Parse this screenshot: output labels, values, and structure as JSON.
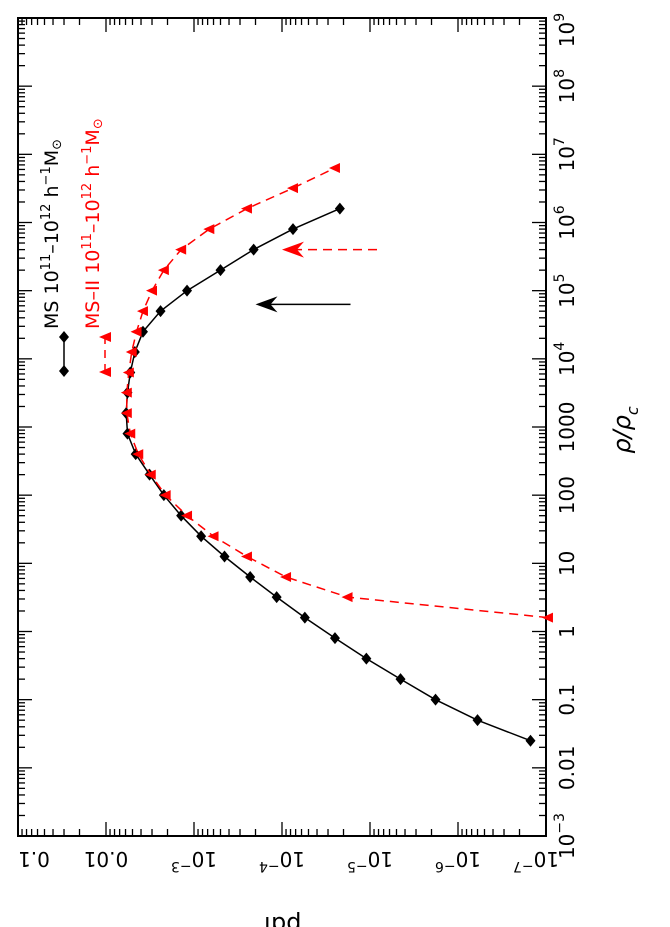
{
  "chart_data": {
    "type": "line",
    "orientation": "rotated 90 degrees clockwise (density axis runs bottom-to-top along the right edge, pdf axis runs right-to-left and is printed upside-down along the top)",
    "xlabel": "ρ/ρ",
    "xlabel_sub": "c",
    "ylabel": "pdf",
    "xscale": "log",
    "yscale": "log",
    "xlim": [
      0.001,
      1000000000
    ],
    "ylim": [
      1e-07,
      0.1
    ],
    "x_tick_labels": [
      {
        "value": 0.001,
        "base": "10",
        "exp": "−3"
      },
      {
        "value": 0.01,
        "text": "0.01"
      },
      {
        "value": 0.1,
        "text": "0.1"
      },
      {
        "value": 1,
        "text": "1"
      },
      {
        "value": 10,
        "text": "10"
      },
      {
        "value": 100,
        "text": "100"
      },
      {
        "value": 1000,
        "text": "1000"
      },
      {
        "value": 10000,
        "base": "10",
        "exp": "4"
      },
      {
        "value": 100000,
        "base": "10",
        "exp": "5"
      },
      {
        "value": 1000000,
        "base": "10",
        "exp": "6"
      },
      {
        "value": 10000000,
        "base": "10",
        "exp": "7"
      },
      {
        "value": 100000000,
        "base": "10",
        "exp": "8"
      },
      {
        "value": 1000000000,
        "base": "10",
        "exp": "9"
      }
    ],
    "y_tick_labels": [
      {
        "value": 1e-07,
        "base": "10",
        "exp": "−7"
      },
      {
        "value": 1e-06,
        "base": "10",
        "exp": "−6"
      },
      {
        "value": 1e-05,
        "base": "10",
        "exp": "−5"
      },
      {
        "value": 0.0001,
        "base": "10",
        "exp": "−4"
      },
      {
        "value": 0.001,
        "base": "10",
        "exp": "−3"
      },
      {
        "value": 0.01,
        "text": "0.01"
      },
      {
        "value": 0.1,
        "text": "0.1"
      }
    ],
    "legend_placement": "top-left",
    "series": [
      {
        "name": "MS 10¹¹–10¹² h⁻¹M⊙",
        "color": "#000000",
        "line_style": "solid",
        "marker": "diamond",
        "x": [
          0.025,
          0.05,
          0.1,
          0.2,
          0.4,
          0.8,
          1.6,
          3.2,
          6.3,
          12.6,
          25,
          50,
          100,
          200,
          400,
          800,
          1600,
          3200,
          6300,
          12600,
          25000,
          50000,
          100000,
          200000,
          400000,
          800000,
          1600000
        ],
        "y": [
          1.5e-07,
          6e-07,
          1.8e-06,
          4.5e-06,
          1.1e-05,
          2.5e-05,
          5.5e-05,
          0.000115,
          0.00023,
          0.00045,
          0.00083,
          0.0014,
          0.0022,
          0.0032,
          0.0046,
          0.0057,
          0.0059,
          0.0057,
          0.0053,
          0.0047,
          0.0038,
          0.0024,
          0.0012,
          0.0005,
          0.00021,
          7.5e-05,
          2.2e-05
        ]
      },
      {
        "name": "MS-II 10¹¹–10¹² h⁻¹M⊙",
        "color": "#ff0000",
        "line_style": "dashed",
        "marker": "triangle-left",
        "x": [
          1.6,
          3.2,
          6.3,
          12.6,
          25,
          50,
          100,
          200,
          400,
          800,
          1600,
          3200,
          6300,
          12600,
          25000,
          50000,
          100000,
          200000,
          400000,
          800000,
          1600000,
          3200000,
          6300000
        ],
        "y": [
          9.5e-08,
          1.8e-05,
          9e-05,
          0.00025,
          0.0006,
          0.0012,
          0.0021,
          0.0031,
          0.0043,
          0.0053,
          0.0058,
          0.0058,
          0.0055,
          0.0051,
          0.0045,
          0.0038,
          0.003,
          0.0022,
          0.0014,
          0.00067,
          0.00025,
          7.5e-05,
          2.5e-05
        ]
      }
    ],
    "annotations": [
      {
        "type": "arrow",
        "color": "#000000",
        "points_to": {
          "x": 63000,
          "y": 0.0002
        }
      },
      {
        "type": "arrow",
        "color": "#ff0000",
        "style": "dashed",
        "points_to": {
          "x": 400000,
          "y": 0.0001
        }
      }
    ]
  },
  "legend": {
    "ms_name": "MS 10",
    "ms_exp1": "11",
    "ms_mid": "–10",
    "ms_exp2": "12",
    "ms_h": " h",
    "ms_hexp": "−1",
    "ms_m": "M",
    "ms_sun": "⊙",
    "ms2_name": "MS–II 10",
    "ms2_exp1": "11",
    "ms2_mid": "–10",
    "ms2_exp2": "12",
    "ms2_h": " h",
    "ms2_hexp": "−1",
    "ms2_m": "M",
    "ms2_sun": "⊙"
  }
}
